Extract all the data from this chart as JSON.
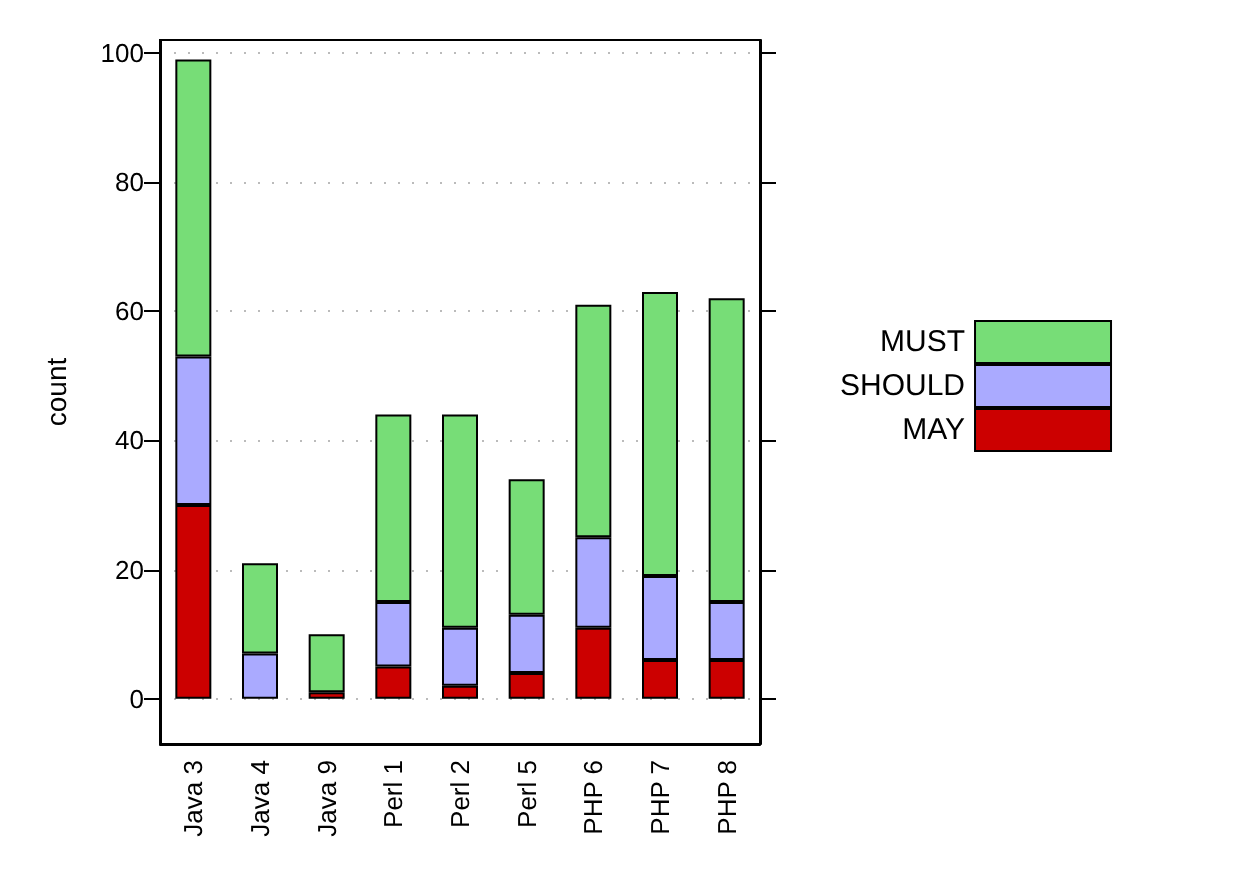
{
  "chart_data": {
    "type": "bar",
    "ylabel": "count",
    "categories": [
      "Java 3",
      "Java 4",
      "Java 9",
      "Perl 1",
      "Perl 2",
      "Perl 5",
      "PHP 6",
      "PHP 7",
      "PHP 8"
    ],
    "stacked": true,
    "series": [
      {
        "name": "MAY",
        "color": "#cc0000",
        "values": [
          30,
          0,
          1,
          5,
          2,
          4,
          11,
          6,
          6
        ]
      },
      {
        "name": "SHOULD",
        "color": "#aaaaff",
        "values": [
          23,
          7,
          0,
          10,
          9,
          9,
          14,
          13,
          9
        ]
      },
      {
        "name": "MUST",
        "color": "#77dd77",
        "values": [
          46,
          14,
          9,
          29,
          33,
          21,
          36,
          44,
          47
        ]
      }
    ],
    "ylim": [
      -7,
      102
    ],
    "yticks": [
      0,
      20,
      40,
      60,
      80,
      100
    ],
    "grid": "y",
    "legend": "right"
  }
}
